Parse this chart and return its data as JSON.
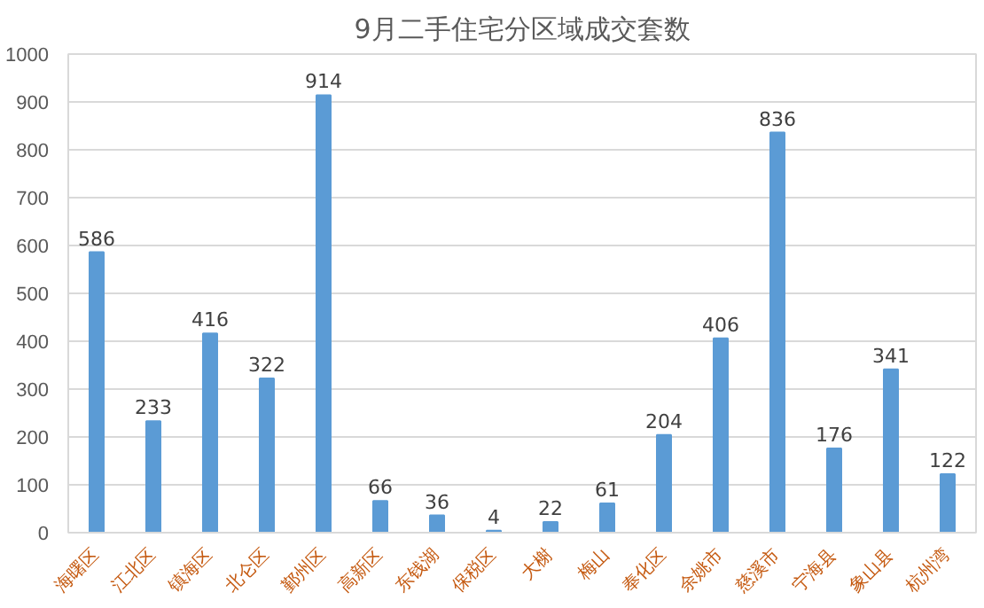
{
  "chart_data": {
    "type": "bar",
    "title": "9月二手住宅分区域成交套数",
    "categories": [
      "海曙区",
      "江北区",
      "镇海区",
      "北仑区",
      "鄞州区",
      "高新区",
      "东钱湖",
      "保税区",
      "大榭",
      "梅山",
      "奉化区",
      "余姚市",
      "慈溪市",
      "宁海县",
      "象山县",
      "杭州湾"
    ],
    "values": [
      586,
      233,
      416,
      322,
      914,
      66,
      36,
      4,
      22,
      61,
      204,
      406,
      836,
      176,
      341,
      122
    ],
    "color": "#5b9bd5",
    "ylim": [
      0,
      1000
    ],
    "yticks": [
      0,
      100,
      200,
      300,
      400,
      500,
      600,
      700,
      800,
      900,
      1000
    ],
    "grid": "y",
    "data_labels": true
  }
}
